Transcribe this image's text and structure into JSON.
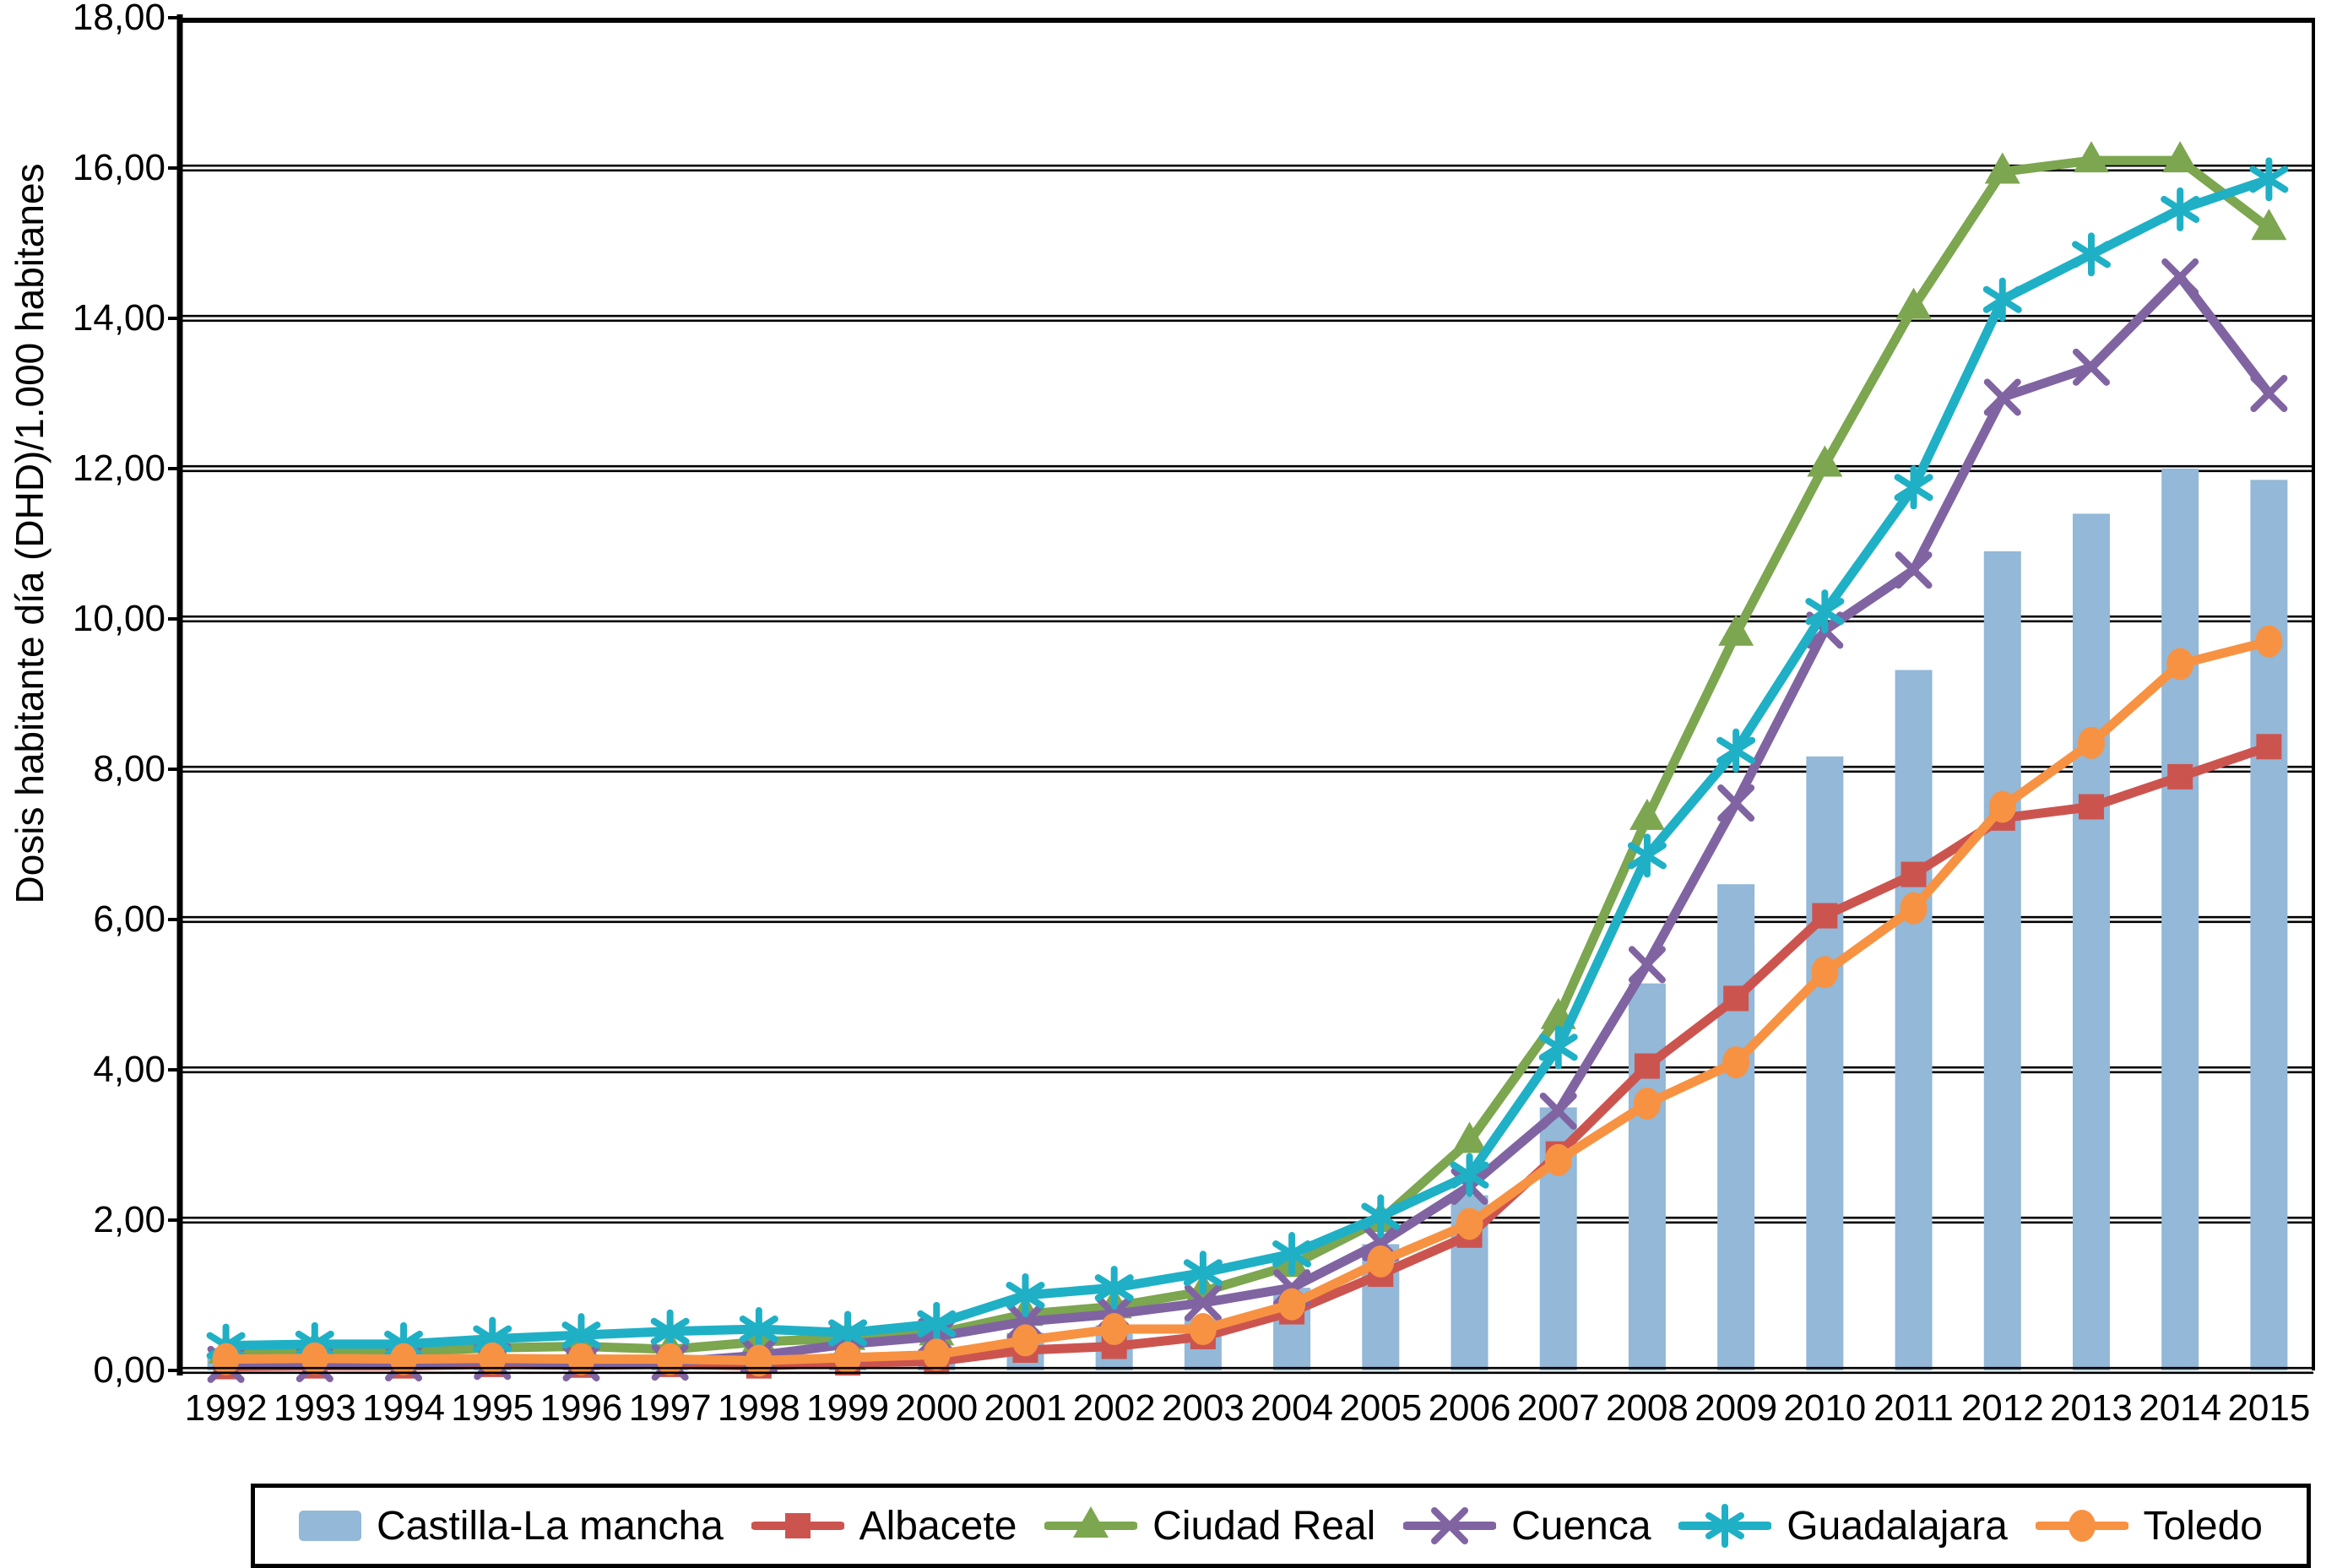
{
  "chart_data": {
    "type": "combo",
    "title": "",
    "xlabel": "",
    "ylabel": "Dosis habitante día (DHD)/1.000 habitanes",
    "ylim": [
      0,
      18
    ],
    "ytick_step": 2,
    "ytick_labels": [
      "0,00",
      "2,00",
      "4,00",
      "6,00",
      "8,00",
      "10,00",
      "12,00",
      "14,00",
      "16,00",
      "18,00"
    ],
    "grid": "horizontal",
    "legend_position": "bottom",
    "categories": [
      "1992",
      "1993",
      "1994",
      "1995",
      "1996",
      "1997",
      "1998",
      "1999",
      "2000",
      "2001",
      "2002",
      "2003",
      "2004",
      "2005",
      "2006",
      "2007",
      "2008",
      "2009",
      "2010",
      "2011",
      "2012",
      "2013",
      "2014",
      "2015"
    ],
    "bar_series": {
      "name": "Castilla-La mancha",
      "color": "#93B8D8",
      "values": [
        0.18,
        0.19,
        0.18,
        0.2,
        0.21,
        0.21,
        0.21,
        0.23,
        0.28,
        0.5,
        0.6,
        0.7,
        1.1,
        1.68,
        2.33,
        3.5,
        5.15,
        6.47,
        8.17,
        9.32,
        10.9,
        11.4,
        12.0,
        11.85
      ]
    },
    "line_series": [
      {
        "name": "Albacete",
        "color": "#CC544F",
        "marker": "square",
        "values": [
          0.05,
          0.06,
          0.06,
          0.08,
          0.07,
          0.08,
          0.06,
          0.1,
          0.12,
          0.27,
          0.32,
          0.45,
          0.78,
          1.28,
          1.8,
          2.88,
          4.05,
          4.95,
          6.05,
          6.6,
          7.35,
          7.5,
          7.9,
          8.3
        ]
      },
      {
        "name": "Ciudad Real",
        "color": "#7CA64F",
        "marker": "triangle",
        "values": [
          0.25,
          0.28,
          0.25,
          0.3,
          0.32,
          0.28,
          0.38,
          0.43,
          0.49,
          0.75,
          0.85,
          1.05,
          1.4,
          2.0,
          3.05,
          4.7,
          7.35,
          9.8,
          12.05,
          14.15,
          15.95,
          16.1,
          16.1,
          15.2
        ]
      },
      {
        "name": "Cuenca",
        "color": "#8064A2",
        "marker": "x",
        "values": [
          0.08,
          0.09,
          0.1,
          0.12,
          0.1,
          0.11,
          0.2,
          0.35,
          0.45,
          0.65,
          0.75,
          0.9,
          1.1,
          1.7,
          2.45,
          3.45,
          5.4,
          7.55,
          9.85,
          10.65,
          12.95,
          13.35,
          14.55,
          13.0
        ]
      },
      {
        "name": "Guadalajara",
        "color": "#1FB0C6",
        "marker": "asterisk",
        "values": [
          0.33,
          0.35,
          0.35,
          0.42,
          0.47,
          0.52,
          0.55,
          0.5,
          0.62,
          1.0,
          1.1,
          1.3,
          1.55,
          2.05,
          2.6,
          4.3,
          6.85,
          8.25,
          10.1,
          11.75,
          14.25,
          14.85,
          15.45,
          15.85
        ]
      },
      {
        "name": "Toledo",
        "color": "#F79243",
        "marker": "circle",
        "values": [
          0.15,
          0.16,
          0.15,
          0.16,
          0.15,
          0.15,
          0.13,
          0.17,
          0.21,
          0.4,
          0.55,
          0.55,
          0.88,
          1.45,
          1.95,
          2.8,
          3.55,
          4.1,
          5.3,
          6.15,
          7.5,
          8.35,
          9.4,
          9.7
        ]
      }
    ]
  }
}
